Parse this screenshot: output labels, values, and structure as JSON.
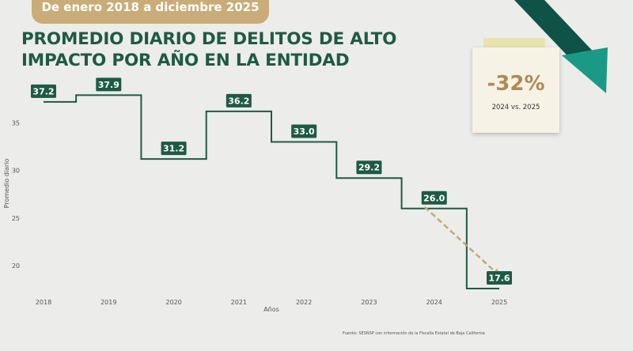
{
  "header": {
    "banner_text": "De enero 2018 a diciembre 2025",
    "title_line1": "PROMEDIO DIARIO DE DELITOS DE ALTO",
    "title_line2": "IMPACTO POR AÑO EN LA ENTIDAD"
  },
  "callout": {
    "value": "-32%",
    "comparison": "2024 vs. 2025"
  },
  "source": "Fuente: SESNSP con información de la Fiscalía Estatal de Baja California",
  "colors": {
    "title": "#1e5a45",
    "line": "#1e5a45",
    "label_bg": "#1e5a45",
    "banner": "#c9ac78",
    "trend_arrow": "#c2a978",
    "big_arrow_dark": "#0f5246",
    "big_arrow_light": "#1a9a86"
  },
  "icons": {
    "decline_arrow": "trend-down-arrow-icon",
    "dashed_arrow": "dashed-down-arrow-icon"
  },
  "chart_data": {
    "type": "line",
    "style": "step",
    "categories": [
      "2018",
      "2019",
      "2020",
      "2021",
      "2022",
      "2023",
      "2024",
      "2025"
    ],
    "values": [
      37.2,
      37.9,
      31.2,
      36.2,
      33.0,
      29.2,
      26.0,
      17.6
    ],
    "value_labels": [
      "37.2",
      "37.9",
      "31.2",
      "36.2",
      "33.0",
      "29.2",
      "26.0",
      "17.6"
    ],
    "xlabel": "Años",
    "ylabel": "Promedio diario",
    "yticks": [
      20,
      25,
      30,
      35
    ],
    "ylim": [
      17.6,
      38.1
    ],
    "grid": false,
    "legend": "none"
  }
}
